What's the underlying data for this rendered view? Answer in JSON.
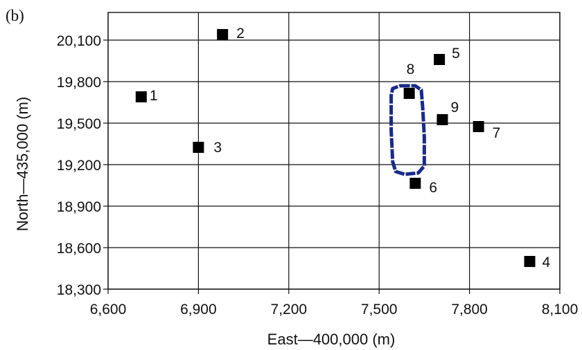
{
  "chart_data": {
    "type": "scatter",
    "panel_label": "(b)",
    "xlabel": "East—400,000 (m)",
    "ylabel": "North—435,000 (m)",
    "xlim": [
      6600,
      8100
    ],
    "ylim": [
      18300,
      20300
    ],
    "x_ticks": [
      6600,
      6900,
      7200,
      7500,
      7800,
      8100
    ],
    "x_tick_labels": [
      "6,600",
      "6,900",
      "7,200",
      "7,500",
      "7,800",
      "8,100"
    ],
    "y_ticks": [
      18300,
      18600,
      18900,
      19200,
      19500,
      19800,
      20100
    ],
    "y_tick_labels": [
      "18,300",
      "18,600",
      "18,900",
      "19,200",
      "19,500",
      "19,800",
      "20,100"
    ],
    "grid": true,
    "marker_color": "#000000",
    "points": [
      {
        "label": "1",
        "x": 6710,
        "y": 19690
      },
      {
        "label": "2",
        "x": 6980,
        "y": 20140
      },
      {
        "label": "3",
        "x": 6900,
        "y": 19325
      },
      {
        "label": "4",
        "x": 8000,
        "y": 18500
      },
      {
        "label": "5",
        "x": 7700,
        "y": 19960
      },
      {
        "label": "6",
        "x": 7620,
        "y": 19065
      },
      {
        "label": "7",
        "x": 7830,
        "y": 19475
      },
      {
        "label": "8",
        "x": 7600,
        "y": 19715
      },
      {
        "label": "9",
        "x": 7710,
        "y": 19525
      }
    ],
    "loop": {
      "color": "#1a2a8a",
      "path": [
        [
          7570,
          19770
        ],
        [
          7620,
          19770
        ],
        [
          7640,
          19740
        ],
        [
          7645,
          19600
        ],
        [
          7650,
          19400
        ],
        [
          7650,
          19190
        ],
        [
          7630,
          19140
        ],
        [
          7585,
          19130
        ],
        [
          7555,
          19150
        ],
        [
          7545,
          19220
        ],
        [
          7540,
          19450
        ],
        [
          7540,
          19700
        ],
        [
          7545,
          19750
        ]
      ]
    }
  }
}
